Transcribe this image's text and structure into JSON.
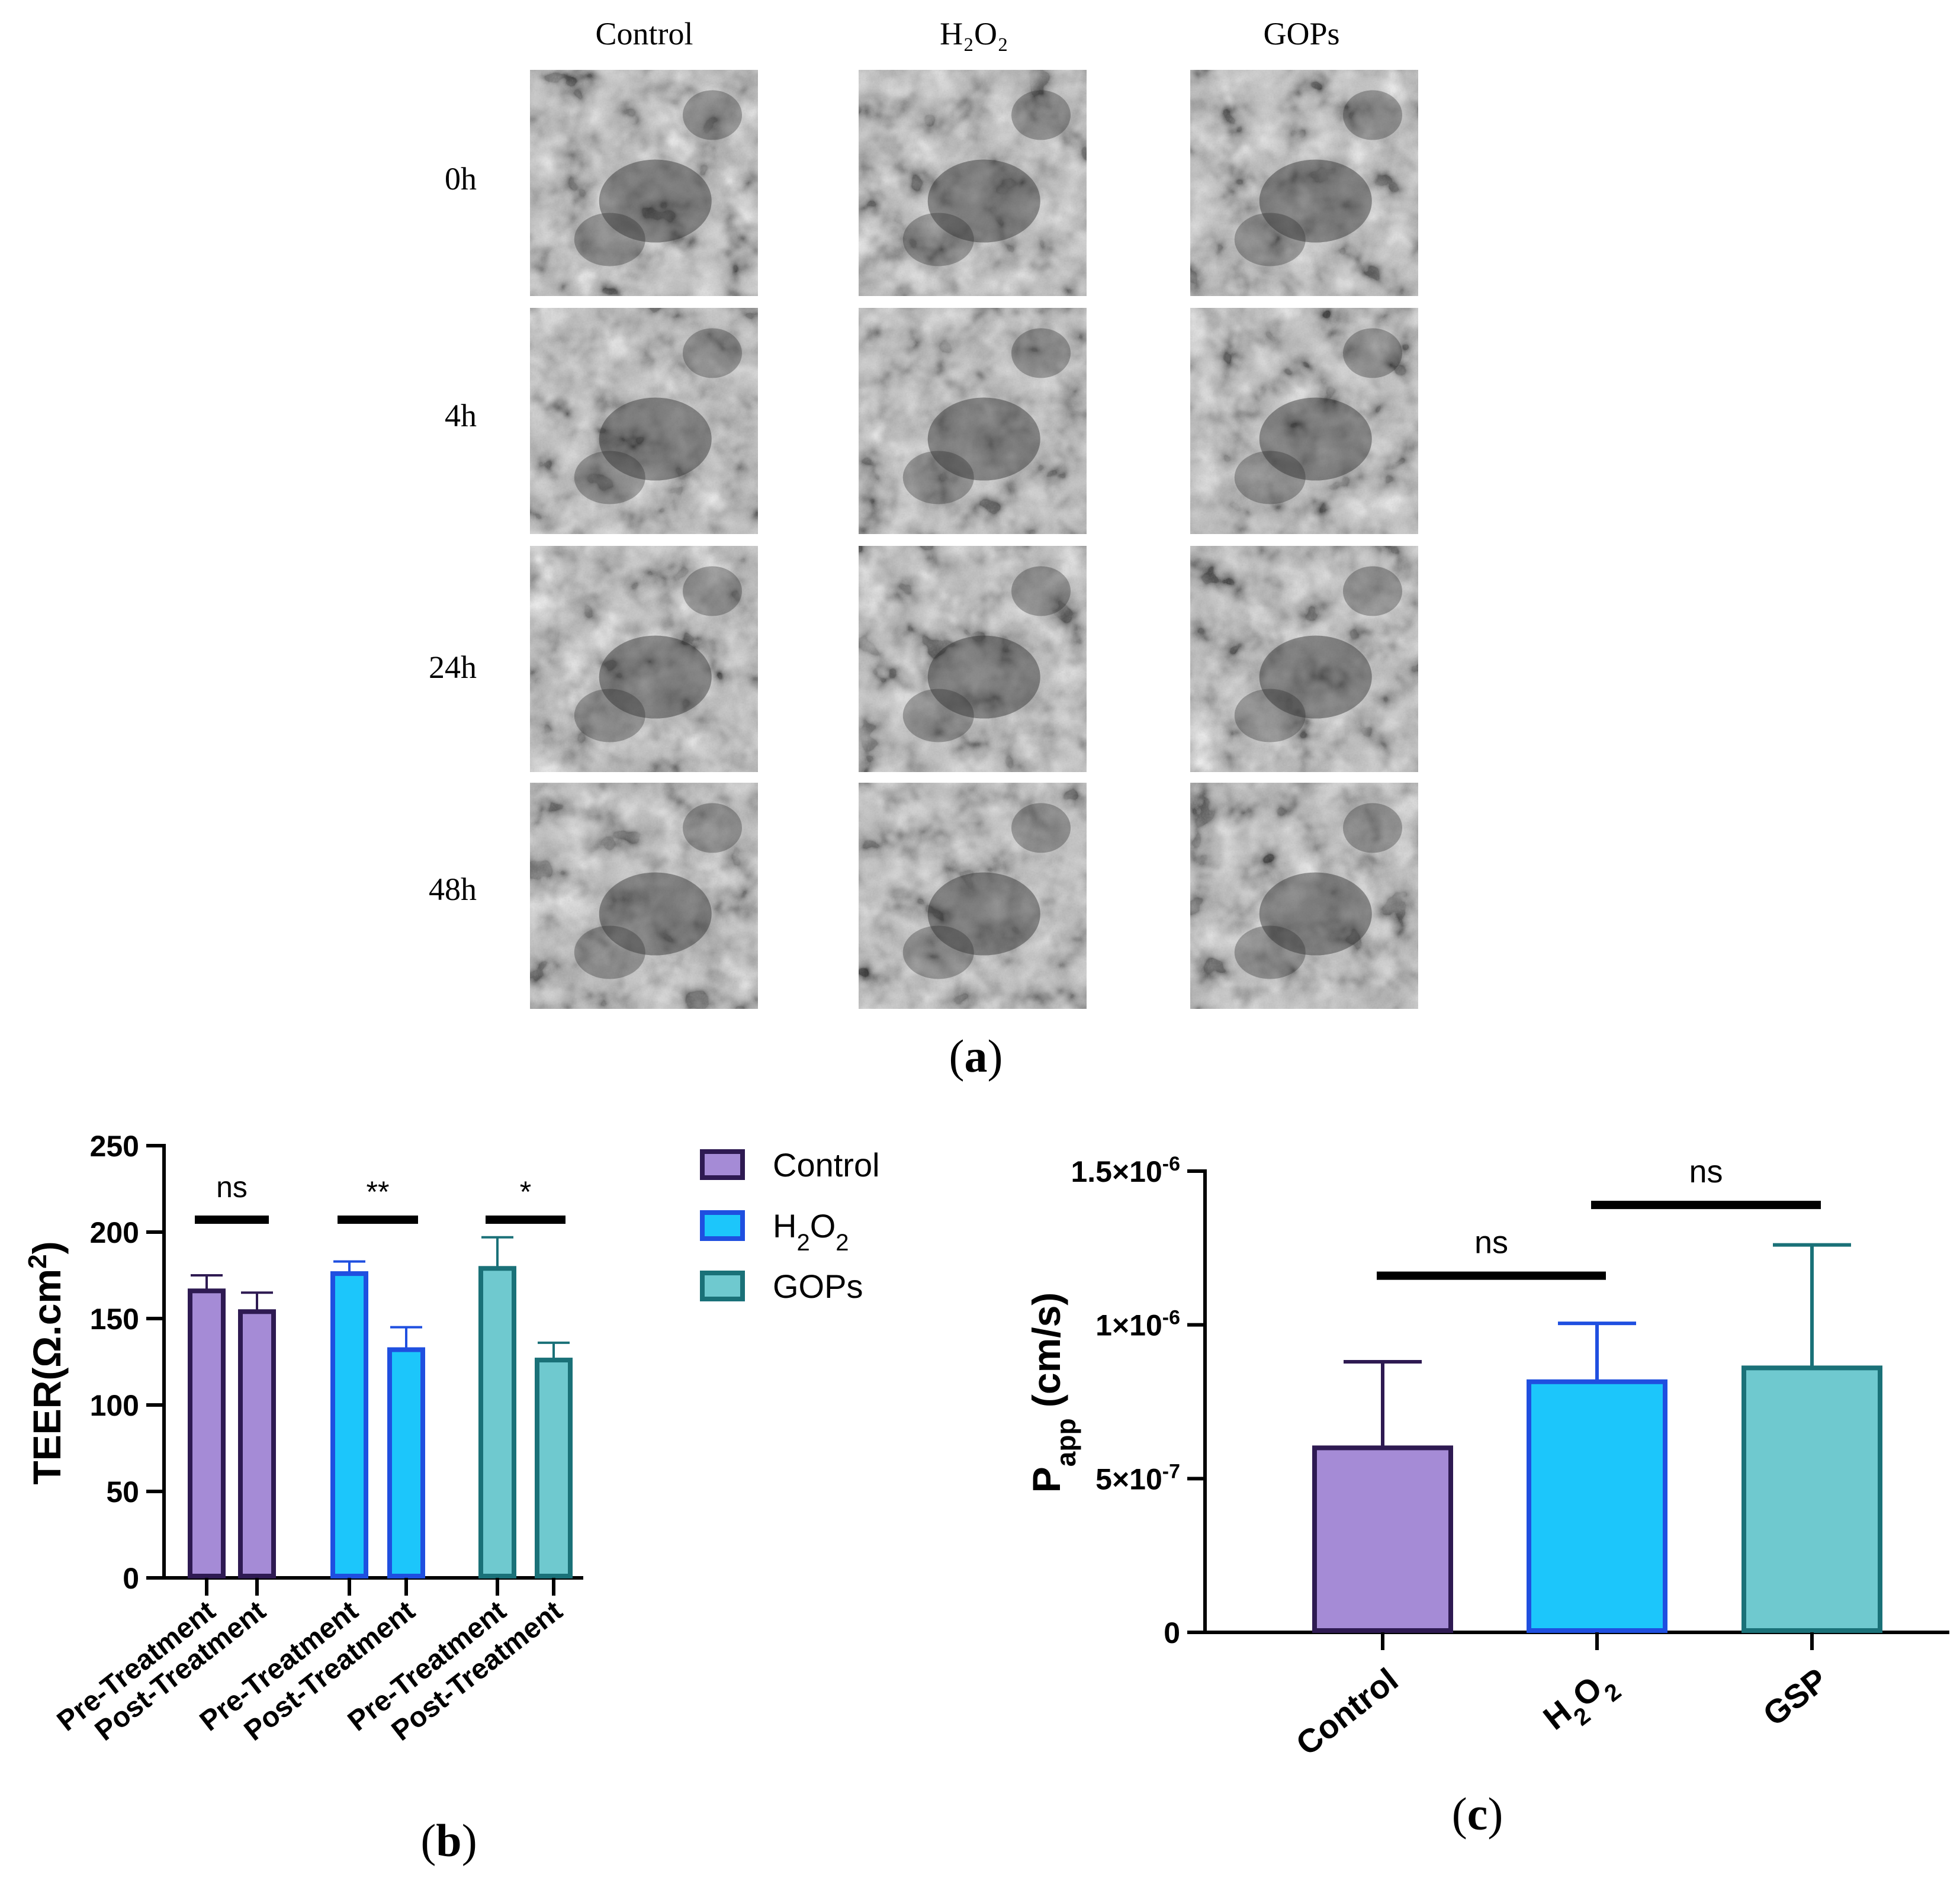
{
  "panel_a": {
    "label_open": "(",
    "label_letter": "a",
    "label_close": ")",
    "columns": [
      "Control",
      "H₂O₂",
      "GOPs"
    ],
    "rows": [
      "0h",
      "4h",
      "24h",
      "48h"
    ]
  },
  "panel_b": {
    "label_open": "(",
    "label_letter": "b",
    "label_close": ")"
  },
  "panel_c": {
    "label_open": "(",
    "label_letter": "c",
    "label_close": ")"
  },
  "colors": {
    "control_fill": "#a58bd6",
    "control_edge": "#2e1a52",
    "h2o2_fill": "#1cc6fb",
    "h2o2_edge": "#1f4fe0",
    "gops_fill": "#6fc9cf",
    "gops_edge": "#1a7178",
    "axis": "#000000",
    "micro_bg": "#bdbdbd",
    "micro_dark": "#2f2f2f"
  },
  "chart_data": [
    {
      "id": "teer",
      "type": "bar",
      "ylabel": "TEER(Ω.cm2)",
      "ylabel_main": "TEER(Ω.cm",
      "ylabel_sup": "2",
      "ylabel_end": ")",
      "ylim": [
        0,
        250
      ],
      "yticks": [
        0,
        50,
        100,
        150,
        200,
        250
      ],
      "categories": [
        "Pre-Treatment",
        "Post-Treatment",
        "Pre-Treatment",
        "Post-Treatment",
        "Pre-Treatment",
        "Post-Treatment"
      ],
      "values": [
        166,
        154,
        176,
        132,
        179,
        126
      ],
      "errors": [
        9,
        11,
        7,
        13,
        18,
        10
      ],
      "groups": [
        "control",
        "control",
        "h2o2",
        "h2o2",
        "gops",
        "gops"
      ],
      "significance": [
        {
          "label": "ns",
          "from": 0,
          "to": 1
        },
        {
          "label": "**",
          "from": 2,
          "to": 3
        },
        {
          "label": "*",
          "from": 4,
          "to": 5
        }
      ],
      "legend": [
        {
          "name": "Control",
          "group": "control"
        },
        {
          "name": "H2O2",
          "main": "H",
          "sub1": "2",
          "mid": "O",
          "sub2": "2",
          "group": "h2o2"
        },
        {
          "name": "GOPs",
          "group": "gops"
        }
      ],
      "legend_position": "right"
    },
    {
      "id": "papp",
      "type": "bar",
      "ylabel": "Papp (cm/s)",
      "ylabel_main": "P",
      "ylabel_sub": "app",
      "ylabel_end": " (cm/s)",
      "ylim": [
        0,
        1.5e-06
      ],
      "yticks": [
        0,
        5e-07,
        1e-06,
        1.5e-06
      ],
      "ytick_labels": [
        {
          "base": "0",
          "exp": ""
        },
        {
          "base": "5×10",
          "exp": "-7"
        },
        {
          "base": "1×10",
          "exp": "-6"
        },
        {
          "base": "1.5×10",
          "exp": "-6"
        }
      ],
      "categories": [
        "Control",
        "H2O2",
        "GSP"
      ],
      "category_parts": [
        {
          "main": "Control"
        },
        {
          "main": "H",
          "sub1": "2",
          "mid": "O",
          "sub2": "2"
        },
        {
          "main": "GSP"
        }
      ],
      "values": [
        6e-07,
        8.15e-07,
        8.6e-07
      ],
      "errors": [
        2.8e-07,
        1.9e-07,
        4e-07
      ],
      "groups": [
        "control",
        "h2o2",
        "gops"
      ],
      "significance": [
        {
          "label": "ns",
          "from": 0,
          "to": 1,
          "level": 1.16e-06
        },
        {
          "label": "ns",
          "from": 1,
          "to": 2,
          "level": 1.39e-06
        }
      ]
    }
  ]
}
